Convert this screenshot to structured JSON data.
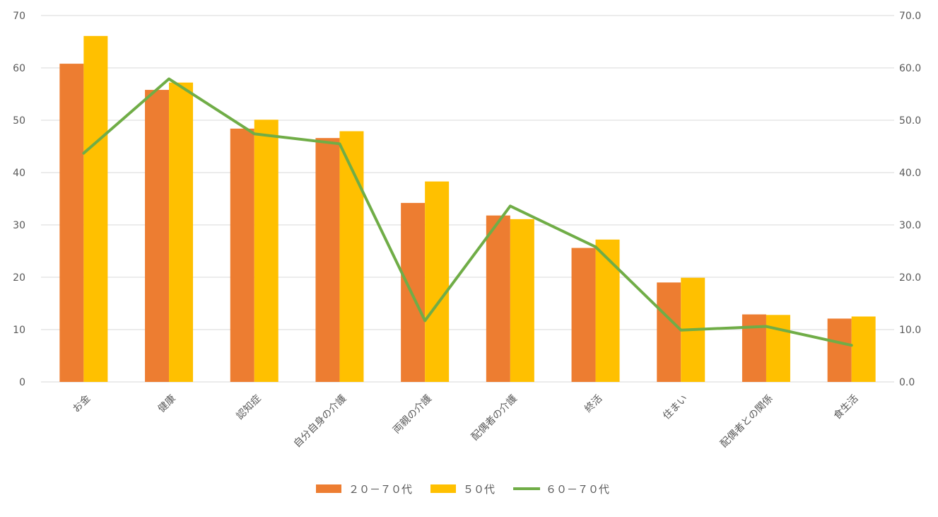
{
  "chart_data": {
    "type": "bar",
    "title": "",
    "xlabel": "",
    "ylabel": "",
    "categories": [
      "お金",
      "健康",
      "認知症",
      "自分自身の介護",
      "両親の介護",
      "配偶者の介護",
      "終活",
      "住まい",
      "配偶者との関係",
      "食生活"
    ],
    "series": [
      {
        "name": "２０－７０代",
        "type": "bar",
        "color": "#ED7D31",
        "axis": "left",
        "values": [
          60.8,
          55.8,
          48.4,
          46.6,
          34.2,
          31.8,
          25.6,
          19.0,
          12.9,
          12.1
        ]
      },
      {
        "name": "５０代",
        "type": "bar",
        "color": "#FFC000",
        "axis": "left",
        "values": [
          66.1,
          57.2,
          50.1,
          47.9,
          38.3,
          31.1,
          27.2,
          19.9,
          12.8,
          12.5
        ]
      },
      {
        "name": "６０－７０代",
        "type": "line",
        "color": "#70AD47",
        "axis": "right",
        "values": [
          43.7,
          57.9,
          47.4,
          45.5,
          11.7,
          33.6,
          25.8,
          9.9,
          10.6,
          7.0
        ]
      }
    ],
    "ylim": [
      0,
      70
    ],
    "y_ticks": [
      "0",
      "10",
      "20",
      "30",
      "40",
      "50",
      "60",
      "70"
    ],
    "y2lim": [
      0,
      70
    ],
    "y2_ticks": [
      "0.0",
      "10.0",
      "20.0",
      "30.0",
      "40.0",
      "50.0",
      "60.0",
      "70.0"
    ],
    "grid": true,
    "legend_position": "bottom"
  }
}
